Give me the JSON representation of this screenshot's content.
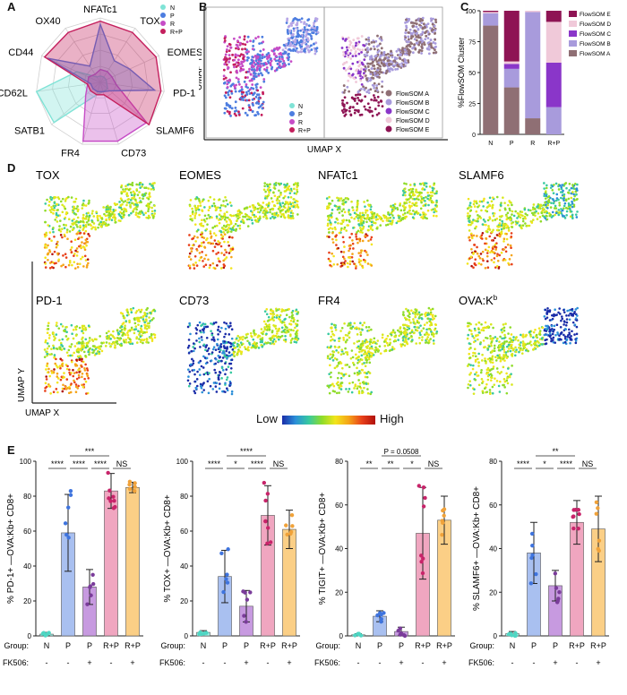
{
  "panels": {
    "A": "A",
    "B": "B",
    "C": "C",
    "D": "D",
    "E": "E"
  },
  "colors": {
    "N": "#7fe3d6",
    "P": "#4d7de0",
    "R": "#c64cc6",
    "RP": "#c41f5d",
    "R_P_orange": "#f5a836",
    "fsA": "#8f6f74",
    "fsB": "#a89bdc",
    "fsC": "#8a36c9",
    "fsD": "#f0c9d9",
    "fsE": "#8e1454"
  },
  "radar": {
    "axes": [
      "NFATc1",
      "TOX",
      "EOMES",
      "PD-1",
      "SLAMF6",
      "CD73",
      "FR4",
      "SATB1",
      "CD62L",
      "CD44",
      "OX40"
    ],
    "legend": [
      {
        "key": "N",
        "label": "N"
      },
      {
        "key": "P",
        "label": "P"
      },
      {
        "key": "R",
        "label": "R"
      },
      {
        "key": "RP",
        "label": "R+P"
      }
    ]
  },
  "umapB": {
    "ylabel": "UMAP Y",
    "xlabel": "UMAP X",
    "legend_left": [
      "N",
      "P",
      "R",
      "R+P"
    ],
    "legend_right": [
      "FlowSOM A",
      "FlowSOM B",
      "FlowSOM C",
      "FlowSOM D",
      "FlowSOM E"
    ]
  },
  "chart_data": [
    {
      "type": "bar",
      "title": "",
      "ylabel": "%FlowSOM Cluster",
      "categories": [
        "N",
        "P",
        "R",
        "R+P"
      ],
      "ylim": [
        0,
        100
      ],
      "yticks": [
        0,
        25,
        50,
        75,
        100
      ],
      "stacked": true,
      "series": [
        {
          "name": "FlowSOM A",
          "values": [
            88,
            38,
            13,
            0
          ]
        },
        {
          "name": "FlowSOM B",
          "values": [
            10,
            15,
            86,
            22
          ]
        },
        {
          "name": "FlowSOM C",
          "values": [
            0,
            4,
            0,
            36
          ]
        },
        {
          "name": "FlowSOM D",
          "values": [
            1,
            2,
            1,
            33
          ]
        },
        {
          "name": "FlowSOM E",
          "values": [
            1,
            41,
            0,
            9
          ]
        }
      ]
    },
    {
      "type": "bar",
      "ylabel": "% PD-1+ —OVA:Kb+ CD8+",
      "categories": [
        "N",
        "P",
        "P",
        "R+P",
        "R+P"
      ],
      "ylim": [
        0,
        100
      ],
      "yticks": [
        0,
        20,
        40,
        60,
        80,
        100
      ],
      "values": [
        1,
        59,
        28,
        83,
        85
      ],
      "errors": [
        1,
        22,
        10,
        10,
        3
      ],
      "significance": [
        {
          "from": 0,
          "to": 1,
          "label": "****",
          "level": 0
        },
        {
          "from": 1,
          "to": 2,
          "label": "****",
          "level": 0
        },
        {
          "from": 2,
          "to": 3,
          "label": "****",
          "level": 0
        },
        {
          "from": 3,
          "to": 4,
          "label": "NS",
          "level": 0
        },
        {
          "from": 1,
          "to": 3,
          "label": "***",
          "level": 1
        }
      ]
    },
    {
      "type": "bar",
      "ylabel": "% TOX+ —OVA:Kb+ CD8+",
      "categories": [
        "N",
        "P",
        "P",
        "R+P",
        "R+P"
      ],
      "ylim": [
        0,
        100
      ],
      "yticks": [
        0,
        20,
        40,
        60,
        80,
        100
      ],
      "values": [
        2,
        34,
        17,
        69,
        61
      ],
      "errors": [
        1,
        15,
        9,
        17,
        11
      ],
      "significance": [
        {
          "from": 0,
          "to": 1,
          "label": "****",
          "level": 0
        },
        {
          "from": 1,
          "to": 2,
          "label": "*",
          "level": 0
        },
        {
          "from": 2,
          "to": 3,
          "label": "****",
          "level": 0
        },
        {
          "from": 3,
          "to": 4,
          "label": "NS",
          "level": 0
        },
        {
          "from": 1,
          "to": 3,
          "label": "****",
          "level": 1
        }
      ]
    },
    {
      "type": "bar",
      "ylabel": "% TIGIT+ —OVA:Kb+ CD8+",
      "categories": [
        "N",
        "P",
        "P",
        "R+P",
        "R+P"
      ],
      "ylim": [
        0,
        80
      ],
      "yticks": [
        0,
        20,
        40,
        60,
        80
      ],
      "values": [
        0.5,
        9,
        2,
        47,
        53
      ],
      "errors": [
        0.5,
        2.5,
        2,
        21,
        11
      ],
      "significance": [
        {
          "from": 0,
          "to": 1,
          "label": "**",
          "level": 0
        },
        {
          "from": 1,
          "to": 2,
          "label": "**",
          "level": 0
        },
        {
          "from": 2,
          "to": 3,
          "label": "*",
          "level": 0
        },
        {
          "from": 3,
          "to": 4,
          "label": "NS",
          "level": 0
        },
        {
          "from": 1,
          "to": 3,
          "label": "P = 0.0508",
          "level": 1
        }
      ]
    },
    {
      "type": "bar",
      "ylabel": "% SLAMF6+ —OVA:Kb+ CD8+",
      "categories": [
        "N",
        "P",
        "P",
        "R+P",
        "R+P"
      ],
      "ylim": [
        0,
        80
      ],
      "yticks": [
        0,
        20,
        40,
        60,
        80
      ],
      "values": [
        1,
        38,
        23,
        52,
        49
      ],
      "errors": [
        1,
        14,
        7,
        10,
        15
      ],
      "significance": [
        {
          "from": 0,
          "to": 1,
          "label": "****",
          "level": 0
        },
        {
          "from": 1,
          "to": 2,
          "label": "*",
          "level": 0
        },
        {
          "from": 2,
          "to": 3,
          "label": "****",
          "level": 0
        },
        {
          "from": 3,
          "to": 4,
          "label": "NS",
          "level": 0
        },
        {
          "from": 1,
          "to": 3,
          "label": "**",
          "level": 1
        }
      ]
    }
  ],
  "fk506": {
    "label": "FK506:",
    "values": [
      "-",
      "-",
      "+",
      "-",
      "+"
    ]
  },
  "group_label": "Group:",
  "umapD": {
    "titles": [
      "TOX",
      "EOMES",
      "NFATc1",
      "SLAMF6",
      "PD-1",
      "CD73",
      "FR4",
      "OVA:K"
    ],
    "superscript": "b",
    "axis_y": "UMAP Y",
    "axis_x": "UMAP X",
    "low": "Low",
    "high": "High"
  }
}
